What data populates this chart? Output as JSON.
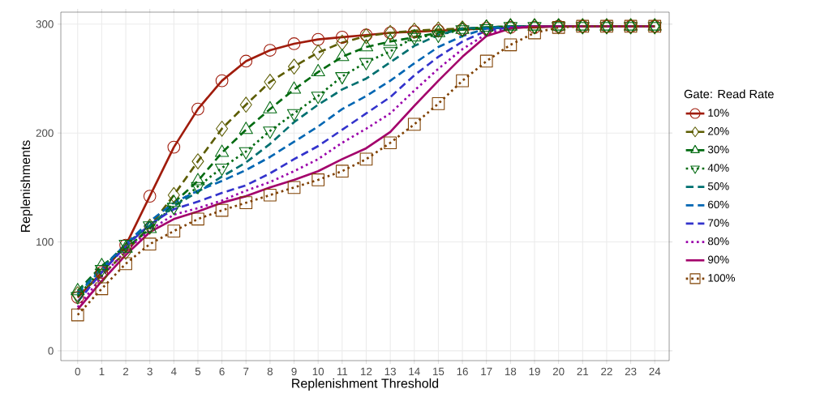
{
  "chart_data": {
    "type": "line",
    "xlabel": "Replenishment Threshold",
    "ylabel": "Replenishments",
    "legend_title": "Gate: Read Rate",
    "x": [
      0,
      1,
      2,
      3,
      4,
      5,
      6,
      7,
      8,
      9,
      10,
      11,
      12,
      13,
      14,
      15,
      16,
      17,
      18,
      19,
      20,
      21,
      22,
      23,
      24
    ],
    "xlim": [
      -0.7,
      24.6
    ],
    "xticks": [
      0,
      1,
      2,
      3,
      4,
      5,
      6,
      7,
      8,
      9,
      10,
      11,
      12,
      13,
      14,
      15,
      16,
      17,
      18,
      19,
      20,
      21,
      22,
      23,
      24
    ],
    "ylim": [
      -9,
      311
    ],
    "yticks": [
      0,
      100,
      200,
      300
    ],
    "grid": true,
    "legend": "right",
    "series": [
      {
        "name": "10%",
        "color": "#a01c0c",
        "marker": "circle",
        "line_style": "solid",
        "values": [
          49,
          72,
          97,
          142,
          187,
          222,
          248,
          266,
          276,
          282,
          286,
          288,
          290,
          292,
          293,
          294,
          295,
          296,
          297,
          297,
          298,
          298,
          298,
          298,
          298
        ]
      },
      {
        "name": "20%",
        "color": "#5c5c00",
        "marker": "diamond",
        "line_style": "dashed",
        "values": [
          52,
          69,
          91,
          114,
          143,
          174,
          204,
          226,
          247,
          261,
          274,
          283,
          289,
          292,
          294,
          295,
          296,
          297,
          298,
          298,
          298,
          298,
          298,
          298,
          298
        ]
      },
      {
        "name": "30%",
        "color": "#006a10",
        "marker": "triangle",
        "line_style": "dashed",
        "values": [
          55,
          78,
          94,
          112,
          136,
          156,
          182,
          203,
          222,
          240,
          256,
          270,
          279,
          284,
          288,
          292,
          295,
          297,
          298,
          298,
          298,
          298,
          298,
          298,
          298
        ]
      },
      {
        "name": "40%",
        "color": "#006a10",
        "marker": "triangle down",
        "line_style": "dotted",
        "values": [
          50,
          75,
          98,
          115,
          132,
          151,
          168,
          183,
          202,
          218,
          234,
          252,
          265,
          275,
          288,
          290,
          295,
          296,
          298,
          298,
          298,
          298,
          298,
          298,
          298
        ]
      },
      {
        "name": "50%",
        "color": "#007070",
        "marker": "none",
        "line_style": "dashed",
        "values": [
          54,
          76,
          98,
          115,
          133,
          146,
          160,
          173,
          190,
          210,
          226,
          240,
          250,
          265,
          280,
          290,
          296,
          297,
          298,
          298,
          298,
          null,
          null,
          null,
          null
        ]
      },
      {
        "name": "60%",
        "color": "#0066b3",
        "marker": "none",
        "line_style": "dashed",
        "values": [
          52,
          75,
          98,
          119,
          136,
          147,
          156,
          166,
          178,
          192,
          206,
          222,
          234,
          248,
          264,
          279,
          289,
          296,
          297,
          298,
          null,
          null,
          null,
          null,
          null
        ]
      },
      {
        "name": "70%",
        "color": "#3333cc",
        "marker": "none",
        "line_style": "dashed",
        "values": [
          45,
          72,
          96,
          116,
          130,
          137,
          145,
          152,
          163,
          176,
          188,
          203,
          218,
          233,
          253,
          270,
          284,
          294,
          297,
          298,
          298,
          null,
          null,
          null,
          null
        ]
      },
      {
        "name": "80%",
        "color": "#9a00aa",
        "marker": "none",
        "line_style": "dotted",
        "values": [
          40,
          68,
          92,
          111,
          125,
          131,
          138,
          147,
          155,
          165,
          176,
          191,
          204,
          218,
          239,
          259,
          277,
          291,
          297,
          298,
          null,
          null,
          null,
          null,
          null
        ]
      },
      {
        "name": "90%",
        "color": "#a3006b",
        "marker": "none",
        "line_style": "solid",
        "values": [
          38,
          64,
          88,
          109,
          121,
          128,
          136,
          142,
          150,
          157,
          165,
          176,
          186,
          201,
          225,
          248,
          270,
          289,
          296,
          298,
          298,
          298,
          298,
          298,
          298
        ]
      },
      {
        "name": "100%",
        "color": "#7f4000",
        "marker": "square",
        "line_style": "dotted",
        "values": [
          33,
          57,
          80,
          98,
          110,
          121,
          129,
          136,
          143,
          150,
          157,
          165,
          176,
          191,
          208,
          227,
          248,
          266,
          281,
          292,
          297,
          298,
          298,
          298,
          298
        ]
      }
    ]
  }
}
